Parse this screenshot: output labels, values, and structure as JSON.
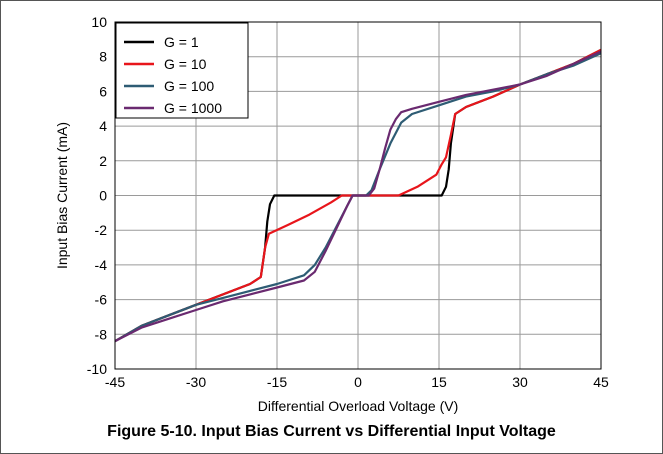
{
  "caption": "Figure 5-10. Input Bias Current vs Differential Input Voltage",
  "chart_data": {
    "type": "line",
    "title": "",
    "xlabel": "Differential Overload Voltage (V)",
    "ylabel": "Input Bias Current (mA)",
    "xlim": [
      -45,
      45
    ],
    "ylim": [
      -10,
      10
    ],
    "xticks": [
      -45,
      -30,
      -15,
      0,
      15,
      30,
      45
    ],
    "yticks": [
      -10,
      -8,
      -6,
      -4,
      -2,
      0,
      2,
      4,
      6,
      8,
      10
    ],
    "grid": true,
    "legend_position": "top-left",
    "series": [
      {
        "name": "G = 1",
        "color": "#000000",
        "points": [
          [
            -45,
            -8.4
          ],
          [
            -40,
            -7.5
          ],
          [
            -35,
            -6.9
          ],
          [
            -30,
            -6.3
          ],
          [
            -25,
            -5.7
          ],
          [
            -20,
            -5.1
          ],
          [
            -18,
            -4.7
          ],
          [
            -17.2,
            -3.0
          ],
          [
            -16.8,
            -1.5
          ],
          [
            -16.3,
            -0.5
          ],
          [
            -15.5,
            0.0
          ],
          [
            15.5,
            0.0
          ],
          [
            16.3,
            0.5
          ],
          [
            16.8,
            1.5
          ],
          [
            17.2,
            3.0
          ],
          [
            18,
            4.7
          ],
          [
            20,
            5.1
          ],
          [
            25,
            5.7
          ],
          [
            30,
            6.4
          ],
          [
            35,
            7.0
          ],
          [
            40,
            7.6
          ],
          [
            45,
            8.4
          ]
        ]
      },
      {
        "name": "G = 10",
        "color": "#e8151b",
        "points": [
          [
            -45,
            -8.4
          ],
          [
            -40,
            -7.5
          ],
          [
            -35,
            -6.9
          ],
          [
            -30,
            -6.3
          ],
          [
            -25,
            -5.7
          ],
          [
            -20,
            -5.1
          ],
          [
            -18,
            -4.7
          ],
          [
            -17.2,
            -3.0
          ],
          [
            -16.5,
            -2.2
          ],
          [
            -13,
            -1.7
          ],
          [
            -9,
            -1.1
          ],
          [
            -5,
            -0.4
          ],
          [
            -3,
            0.0
          ],
          [
            7.5,
            0.0
          ],
          [
            11,
            0.5
          ],
          [
            14.5,
            1.2
          ],
          [
            15.5,
            1.8
          ],
          [
            16.3,
            2.2
          ],
          [
            17.2,
            3.5
          ],
          [
            18,
            4.7
          ],
          [
            20,
            5.1
          ],
          [
            25,
            5.7
          ],
          [
            30,
            6.4
          ],
          [
            35,
            7.0
          ],
          [
            40,
            7.6
          ],
          [
            45,
            8.4
          ]
        ]
      },
      {
        "name": "G = 100",
        "color": "#2e5c74",
        "points": [
          [
            -45,
            -8.4
          ],
          [
            -40,
            -7.5
          ],
          [
            -35,
            -6.9
          ],
          [
            -30,
            -6.3
          ],
          [
            -25,
            -5.9
          ],
          [
            -20,
            -5.5
          ],
          [
            -15,
            -5.1
          ],
          [
            -10,
            -4.6
          ],
          [
            -8,
            -4.0
          ],
          [
            -6,
            -3.0
          ],
          [
            -4,
            -1.8
          ],
          [
            -2,
            -0.6
          ],
          [
            -1,
            0.0
          ],
          [
            1.5,
            0.0
          ],
          [
            2.5,
            0.3
          ],
          [
            4,
            1.5
          ],
          [
            6,
            3.0
          ],
          [
            8,
            4.2
          ],
          [
            10,
            4.7
          ],
          [
            15,
            5.2
          ],
          [
            20,
            5.7
          ],
          [
            25,
            6.0
          ],
          [
            30,
            6.4
          ],
          [
            35,
            7.0
          ],
          [
            40,
            7.5
          ],
          [
            45,
            8.2
          ]
        ]
      },
      {
        "name": "G = 1000",
        "color": "#6a2a70",
        "points": [
          [
            -45,
            -8.4
          ],
          [
            -40,
            -7.6
          ],
          [
            -35,
            -7.1
          ],
          [
            -30,
            -6.6
          ],
          [
            -25,
            -6.1
          ],
          [
            -20,
            -5.7
          ],
          [
            -15,
            -5.3
          ],
          [
            -10,
            -4.9
          ],
          [
            -8,
            -4.4
          ],
          [
            -6,
            -3.2
          ],
          [
            -4,
            -1.9
          ],
          [
            -2,
            -0.6
          ],
          [
            -1,
            0.0
          ],
          [
            2,
            0.0
          ],
          [
            3,
            0.4
          ],
          [
            4,
            1.5
          ],
          [
            5,
            2.7
          ],
          [
            6,
            3.8
          ],
          [
            7,
            4.4
          ],
          [
            8,
            4.8
          ],
          [
            10,
            5.0
          ],
          [
            15,
            5.4
          ],
          [
            20,
            5.8
          ],
          [
            25,
            6.1
          ],
          [
            30,
            6.4
          ],
          [
            35,
            6.9
          ],
          [
            40,
            7.6
          ],
          [
            45,
            8.3
          ]
        ]
      }
    ]
  }
}
